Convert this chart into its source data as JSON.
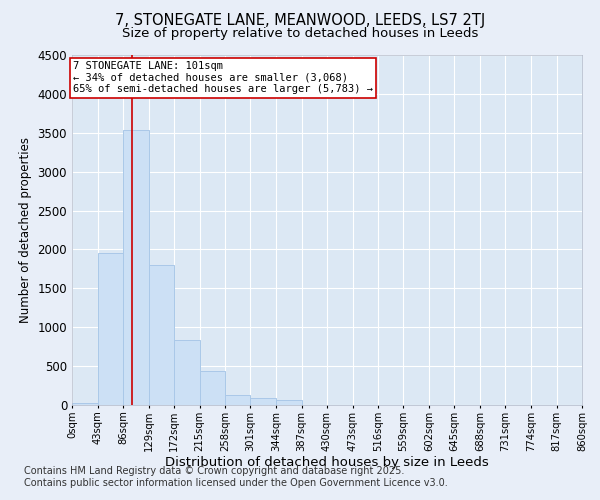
{
  "title_line1": "7, STONEGATE LANE, MEANWOOD, LEEDS, LS7 2TJ",
  "title_line2": "Size of property relative to detached houses in Leeds",
  "xlabel": "Distribution of detached houses by size in Leeds",
  "ylabel": "Number of detached properties",
  "bin_edges": [
    0,
    43,
    86,
    129,
    172,
    215,
    258,
    301,
    344,
    387,
    430,
    473,
    516,
    559,
    602,
    645,
    688,
    731,
    774,
    817,
    860
  ],
  "bin_labels": [
    "0sqm",
    "43sqm",
    "86sqm",
    "129sqm",
    "172sqm",
    "215sqm",
    "258sqm",
    "301sqm",
    "344sqm",
    "387sqm",
    "430sqm",
    "473sqm",
    "516sqm",
    "559sqm",
    "602sqm",
    "645sqm",
    "688sqm",
    "731sqm",
    "774sqm",
    "817sqm",
    "860sqm"
  ],
  "bar_heights": [
    30,
    1950,
    3530,
    1800,
    840,
    440,
    130,
    90,
    65,
    0,
    0,
    0,
    0,
    0,
    0,
    0,
    0,
    0,
    0,
    0
  ],
  "bar_color": "#cce0f5",
  "bar_edge_color": "#aac8e8",
  "property_size": 101,
  "vline_color": "#cc0000",
  "annotation_text": "7 STONEGATE LANE: 101sqm\n← 34% of detached houses are smaller (3,068)\n65% of semi-detached houses are larger (5,783) →",
  "annotation_box_color": "#ffffff",
  "annotation_box_edge": "#cc0000",
  "ylim": [
    0,
    4500
  ],
  "yticks": [
    0,
    500,
    1000,
    1500,
    2000,
    2500,
    3000,
    3500,
    4000,
    4500
  ],
  "background_color": "#e8eef8",
  "plot_bg_color": "#dce8f4",
  "footer_line1": "Contains HM Land Registry data © Crown copyright and database right 2025.",
  "footer_line2": "Contains public sector information licensed under the Open Government Licence v3.0.",
  "title_fontsize": 10.5,
  "subtitle_fontsize": 9.5,
  "footer_fontsize": 7.0,
  "annotation_fontsize": 7.5,
  "ylabel_fontsize": 8.5,
  "xlabel_fontsize": 9.5
}
